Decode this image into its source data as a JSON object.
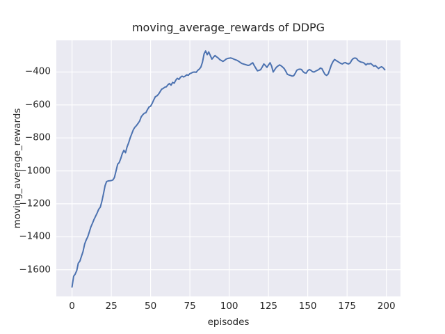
{
  "chart_data": {
    "type": "line",
    "title": "moving_average_rewards of DDPG",
    "xlabel": "episodes",
    "ylabel": "moving_average_rewards",
    "xlim": [
      -10,
      209
    ],
    "ylim": [
      -1762,
      -208
    ],
    "grid": true,
    "legend": null,
    "xticks": [
      0,
      25,
      50,
      75,
      100,
      125,
      150,
      175,
      200
    ],
    "xtick_labels": [
      "0",
      "25",
      "50",
      "75",
      "100",
      "125",
      "150",
      "175",
      "200"
    ],
    "yticks": [
      -400,
      -600,
      -800,
      -1000,
      -1200,
      -1400,
      -1600
    ],
    "ytick_labels": [
      "−400",
      "−600",
      "−800",
      "−1000",
      "−1200",
      "−1400",
      "−1600"
    ],
    "colors": {
      "line": "#4c72b0",
      "axes_background": "#eaeaf2",
      "grid": "#ffffff",
      "figure_background": "#ffffff",
      "text": "#262626"
    },
    "series": [
      {
        "name": "moving_average_rewards",
        "x": [
          0,
          1,
          2,
          3,
          4,
          5,
          6,
          7,
          8,
          9,
          10,
          11,
          12,
          13,
          14,
          15,
          16,
          17,
          18,
          19,
          20,
          21,
          22,
          23,
          24,
          25,
          26,
          27,
          28,
          29,
          30,
          31,
          32,
          33,
          34,
          35,
          36,
          37,
          38,
          39,
          40,
          41,
          42,
          43,
          44,
          45,
          46,
          47,
          48,
          49,
          50,
          51,
          52,
          53,
          54,
          55,
          56,
          57,
          58,
          59,
          60,
          61,
          62,
          63,
          64,
          65,
          66,
          67,
          68,
          69,
          70,
          71,
          72,
          73,
          74,
          75,
          76,
          77,
          78,
          79,
          80,
          81,
          82,
          83,
          84,
          85,
          86,
          87,
          88,
          89,
          90,
          91,
          92,
          93,
          94,
          95,
          96,
          97,
          98,
          99,
          100,
          101,
          102,
          103,
          104,
          105,
          106,
          107,
          108,
          109,
          110,
          111,
          112,
          113,
          114,
          115,
          116,
          117,
          118,
          119,
          120,
          121,
          122,
          123,
          124,
          125,
          126,
          127,
          128,
          129,
          130,
          131,
          132,
          133,
          134,
          135,
          136,
          137,
          138,
          139,
          140,
          141,
          142,
          143,
          144,
          145,
          146,
          147,
          148,
          149,
          150,
          151,
          152,
          153,
          154,
          155,
          156,
          157,
          158,
          159,
          160,
          161,
          162,
          163,
          164,
          165,
          166,
          167,
          168,
          169,
          170,
          171,
          172,
          173,
          174,
          175,
          176,
          177,
          178,
          179,
          180,
          181,
          182,
          183,
          184,
          185,
          186,
          187,
          188,
          189,
          190,
          191,
          192,
          193,
          194,
          195,
          196,
          197,
          198,
          199
        ],
        "y": [
          -1705,
          -1640,
          -1627,
          -1605,
          -1560,
          -1548,
          -1518,
          -1490,
          -1445,
          -1420,
          -1400,
          -1370,
          -1340,
          -1318,
          -1295,
          -1275,
          -1255,
          -1233,
          -1220,
          -1185,
          -1140,
          -1090,
          -1065,
          -1061,
          -1060,
          -1059,
          -1055,
          -1040,
          -1000,
          -960,
          -950,
          -925,
          -895,
          -875,
          -890,
          -855,
          -830,
          -800,
          -775,
          -750,
          -735,
          -725,
          -712,
          -698,
          -672,
          -660,
          -650,
          -647,
          -628,
          -612,
          -608,
          -590,
          -570,
          -550,
          -545,
          -535,
          -520,
          -505,
          -500,
          -492,
          -490,
          -478,
          -470,
          -480,
          -463,
          -468,
          -450,
          -438,
          -445,
          -432,
          -425,
          -430,
          -425,
          -417,
          -420,
          -410,
          -406,
          -401,
          -400,
          -402,
          -390,
          -382,
          -370,
          -340,
          -290,
          -272,
          -295,
          -278,
          -300,
          -322,
          -310,
          -300,
          -308,
          -315,
          -325,
          -330,
          -336,
          -330,
          -322,
          -318,
          -316,
          -315,
          -318,
          -322,
          -326,
          -329,
          -335,
          -342,
          -348,
          -351,
          -354,
          -357,
          -360,
          -358,
          -350,
          -344,
          -362,
          -378,
          -393,
          -390,
          -386,
          -370,
          -351,
          -360,
          -372,
          -358,
          -344,
          -365,
          -400,
          -385,
          -372,
          -364,
          -357,
          -362,
          -370,
          -379,
          -395,
          -414,
          -418,
          -421,
          -425,
          -423,
          -408,
          -390,
          -384,
          -383,
          -385,
          -398,
          -405,
          -407,
          -392,
          -385,
          -390,
          -398,
          -400,
          -395,
          -390,
          -385,
          -376,
          -380,
          -398,
          -415,
          -421,
          -412,
          -385,
          -358,
          -338,
          -324,
          -330,
          -336,
          -342,
          -348,
          -351,
          -345,
          -343,
          -349,
          -351,
          -345,
          -328,
          -318,
          -315,
          -318,
          -330,
          -336,
          -340,
          -342,
          -347,
          -357,
          -350,
          -351,
          -348,
          -356,
          -365,
          -361,
          -370,
          -379,
          -372,
          -368,
          -375,
          -386
        ]
      }
    ]
  }
}
